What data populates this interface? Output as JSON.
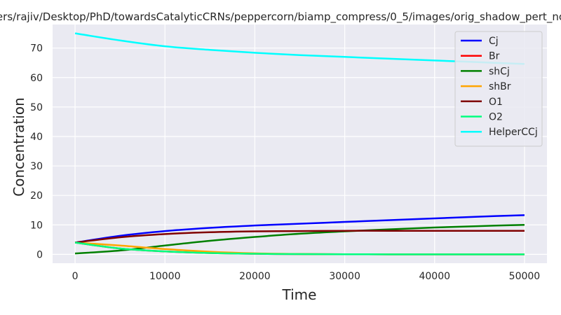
{
  "chart_data": {
    "type": "line",
    "title": "ers/rajiv/Desktop/PhD/towardsCatalyticCRNs/peppercorn/biamp_compress/0_5/images/orig_shadow_pert_nc",
    "xlabel": "Time",
    "ylabel": "Concentration",
    "xlim": [
      -2500,
      52500
    ],
    "ylim": [
      -3,
      78
    ],
    "xticks": [
      0,
      10000,
      20000,
      30000,
      40000,
      50000
    ],
    "xtick_labels": [
      "0",
      "10000",
      "20000",
      "30000",
      "40000",
      "50000"
    ],
    "yticks": [
      0,
      10,
      20,
      30,
      40,
      50,
      60,
      70
    ],
    "ytick_labels": [
      "0",
      "10",
      "20",
      "30",
      "40",
      "50",
      "60",
      "70"
    ],
    "grid": true,
    "legend_position": "top-right",
    "x": [
      0,
      5000,
      10000,
      15000,
      20000,
      25000,
      30000,
      35000,
      40000,
      45000,
      50000
    ],
    "series": [
      {
        "name": "Cj",
        "color": "#0000ff",
        "values": [
          4.0,
          6.3,
          7.9,
          9.0,
          9.8,
          10.4,
          11.0,
          11.6,
          12.2,
          12.8,
          13.3
        ]
      },
      {
        "name": "Br",
        "color": "#ff0000",
        "values": [
          4.0,
          2.0,
          1.0,
          0.45,
          0.2,
          0.08,
          0.03,
          0.01,
          0.0,
          0.0,
          0.0
        ]
      },
      {
        "name": "shCj",
        "color": "#008000",
        "values": [
          0.3,
          1.3,
          3.0,
          4.6,
          5.9,
          7.0,
          7.8,
          8.5,
          9.1,
          9.6,
          10.0
        ]
      },
      {
        "name": "shBr",
        "color": "#ffa500",
        "values": [
          4.0,
          3.0,
          1.8,
          0.9,
          0.35,
          0.12,
          0.04,
          0.01,
          0.0,
          0.0,
          0.0
        ]
      },
      {
        "name": "O1",
        "color": "#800000",
        "values": [
          4.0,
          5.8,
          6.9,
          7.5,
          7.8,
          7.9,
          8.0,
          8.0,
          8.0,
          8.0,
          8.0
        ]
      },
      {
        "name": "O2",
        "color": "#00ff7f",
        "values": [
          4.0,
          2.0,
          1.0,
          0.45,
          0.2,
          0.08,
          0.03,
          0.01,
          0.0,
          0.0,
          0.0
        ]
      },
      {
        "name": "HelperCCj",
        "color": "#00ffff",
        "values": [
          75.0,
          72.6,
          70.6,
          69.4,
          68.4,
          67.6,
          67.0,
          66.4,
          65.8,
          65.2,
          64.6
        ]
      }
    ]
  }
}
